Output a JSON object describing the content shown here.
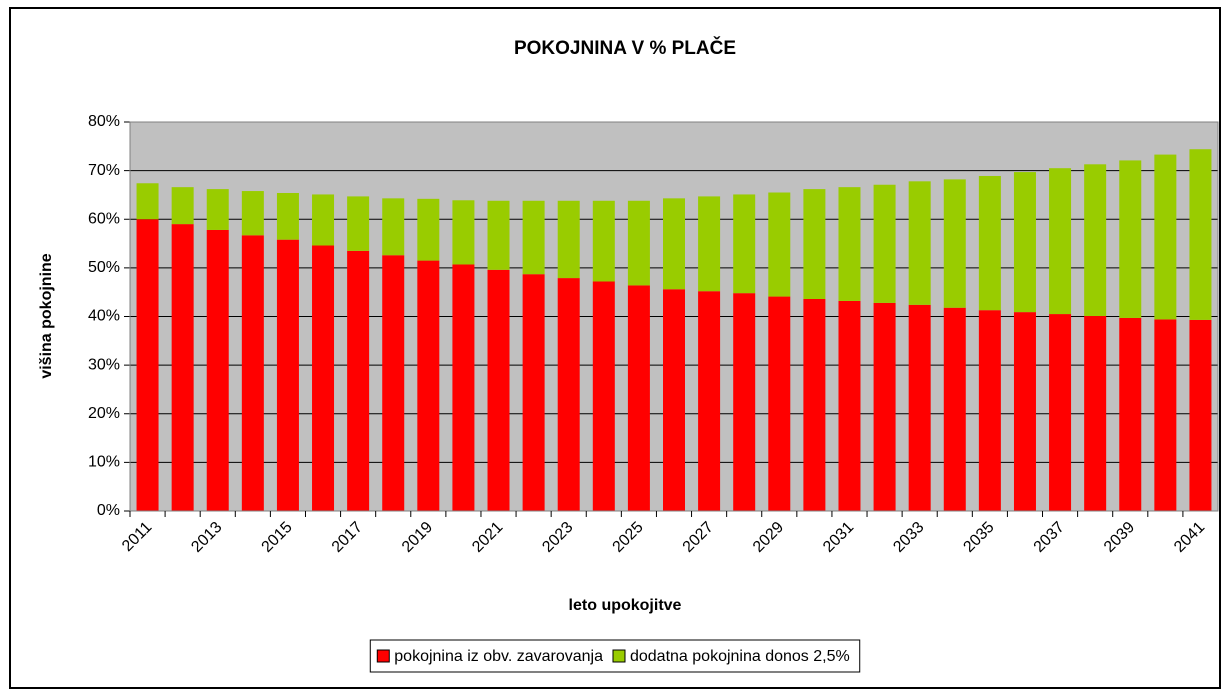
{
  "chart_data": {
    "type": "stacked_bar",
    "title": "POKOJNINA V % PLAČE",
    "xlabel": "leto upokojitve",
    "ylabel": "višina pokojnine",
    "categories": [
      "2011",
      null,
      "2013",
      null,
      "2015",
      null,
      "2017",
      null,
      "2019",
      null,
      "2021",
      null,
      "2023",
      null,
      "2025",
      null,
      "2027",
      null,
      "2029",
      null,
      "2031",
      null,
      "2033",
      null,
      "2035",
      null,
      "2037",
      null,
      "2039",
      null,
      "2041"
    ],
    "series": [
      {
        "name": "pokojnina iz obv. zavarovanja",
        "color": "#ff0000",
        "values": [
          60,
          59,
          57.8,
          56.7,
          55.8,
          54.6,
          53.5,
          52.6,
          51.5,
          50.7,
          49.6,
          48.7,
          47.9,
          47.2,
          46.4,
          45.6,
          45.2,
          44.8,
          44.1,
          43.6,
          43.2,
          42.8,
          42.4,
          41.8,
          41.3,
          40.9,
          40.5,
          40.1,
          39.7,
          39.4,
          39.3
        ]
      },
      {
        "name": "dodatna pokojnina donos 2,5%",
        "color": "#99cc00",
        "values": [
          7.4,
          7.6,
          8.4,
          9.1,
          9.6,
          10.5,
          11.2,
          11.7,
          12.7,
          13.2,
          14.2,
          15.1,
          15.9,
          16.6,
          17.4,
          18.7,
          19.5,
          20.3,
          21.4,
          22.6,
          23.4,
          24.3,
          25.4,
          26.4,
          27.6,
          28.8,
          30.0,
          31.2,
          32.4,
          33.9,
          35.1
        ]
      }
    ],
    "ylim": [
      0,
      80
    ],
    "yticks": [
      {
        "value": 0,
        "label": "0%"
      },
      {
        "value": 10,
        "label": "10%"
      },
      {
        "value": 20,
        "label": "20%"
      },
      {
        "value": 30,
        "label": "30%"
      },
      {
        "value": 40,
        "label": "40%"
      },
      {
        "value": 50,
        "label": "50%"
      },
      {
        "value": 60,
        "label": "60%"
      },
      {
        "value": 70,
        "label": "70%"
      },
      {
        "value": 80,
        "label": "80%"
      }
    ],
    "grid": true,
    "legend": "bottom"
  }
}
